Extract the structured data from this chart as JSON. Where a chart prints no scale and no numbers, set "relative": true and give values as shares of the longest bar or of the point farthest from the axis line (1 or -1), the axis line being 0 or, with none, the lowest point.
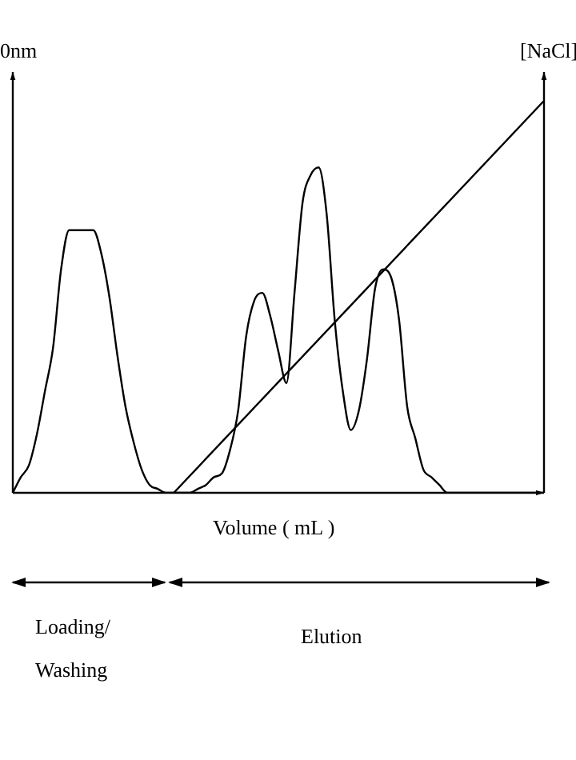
{
  "chart_data": {
    "type": "line",
    "relative": true,
    "ylabel": "0nm",
    "y2label": "[NaCl]",
    "xlabel": "Volume ( mL )",
    "categories": [
      null,
      null,
      null,
      null,
      null,
      null,
      null,
      null,
      null,
      null,
      null,
      null,
      null,
      null,
      null,
      null,
      null,
      null,
      null,
      null,
      null,
      null,
      null,
      null,
      null,
      null,
      null,
      null,
      null,
      null,
      null,
      null,
      null,
      null,
      null,
      null,
      null,
      null,
      null,
      null,
      null,
      null,
      null,
      null,
      null,
      null,
      null,
      null,
      null,
      null,
      null,
      null,
      null,
      null,
      null,
      null,
      null,
      null,
      null,
      null,
      null,
      null,
      null,
      null,
      null,
      null,
      null
    ],
    "series": [
      {
        "color": "#000000",
        "values": [
          0,
          0.04,
          0.07,
          0.15,
          0.26,
          0.37,
          0.57,
          0.67,
          0.67,
          0.67,
          0.67,
          0.61,
          0.5,
          0.35,
          0.22,
          0.13,
          0.06,
          0.02,
          0.01,
          0,
          0,
          0,
          0,
          0.01,
          0.02,
          0.04,
          0.05,
          0.11,
          0.21,
          0.4,
          0.49,
          0.51,
          0.45,
          0.36,
          0.28,
          0.51,
          0.74,
          0.81,
          0.83,
          0.71,
          0.44,
          0.26,
          0.16,
          0.21,
          0.34,
          0.52,
          0.57,
          0.55,
          0.44,
          0.22,
          0.14,
          0.06,
          0.04,
          0.02,
          0,
          0,
          0,
          0,
          0,
          0,
          0,
          0,
          0,
          0,
          0,
          0,
          0
        ]
      },
      {
        "color": "#000000",
        "values": [
          null,
          null,
          null,
          null,
          null,
          null,
          null,
          null,
          null,
          null,
          null,
          null,
          null,
          null,
          null,
          null,
          null,
          null,
          null,
          null,
          0,
          null,
          null,
          null,
          null,
          null,
          null,
          null,
          null,
          null,
          null,
          null,
          null,
          null,
          null,
          null,
          null,
          null,
          null,
          null,
          null,
          null,
          null,
          null,
          null,
          null,
          null,
          null,
          null,
          null,
          null,
          null,
          null,
          null,
          null,
          null,
          null,
          null,
          null,
          null,
          null,
          null,
          null,
          null,
          null,
          null,
          1
        ]
      }
    ],
    "annotations": [
      "Loading/ Washing",
      "Elution"
    ],
    "legend": false,
    "marker": "none",
    "line_style": "solid"
  }
}
